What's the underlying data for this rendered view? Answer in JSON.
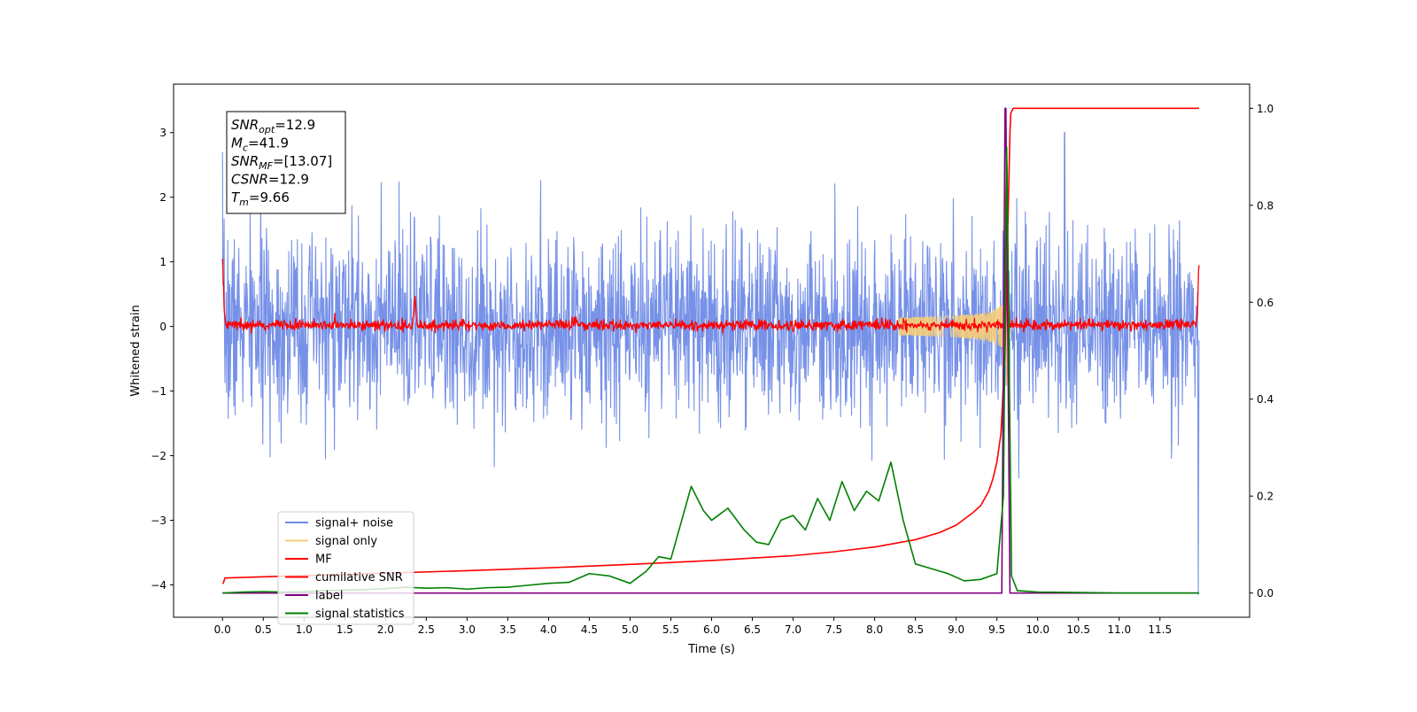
{
  "chart_data": {
    "type": "line",
    "xlabel": "Time (s)",
    "ylabel": "Whitened strain",
    "xlim": [
      -0.6,
      12.6
    ],
    "ylim": [
      -4.5,
      3.75
    ],
    "y2lim": [
      -0.05,
      1.05
    ],
    "x_ticks": [
      0.0,
      0.5,
      1.0,
      1.5,
      2.0,
      2.5,
      3.0,
      3.5,
      4.0,
      4.5,
      5.0,
      5.5,
      6.0,
      6.5,
      7.0,
      7.5,
      8.0,
      8.5,
      9.0,
      9.5,
      10.0,
      10.5,
      11.0,
      11.5
    ],
    "x_tick_labels": [
      "0.0",
      "0.5",
      "1.0",
      "1.5",
      "2.0",
      "2.5",
      "3.0",
      "3.5",
      "4.0",
      "4.5",
      "5.0",
      "5.5",
      "6.0",
      "6.5",
      "7.0",
      "7.5",
      "8.0",
      "8.5",
      "9.0",
      "9.5",
      "10.0",
      "10.5",
      "11.0",
      "11.5"
    ],
    "y_ticks": [
      -4,
      -3,
      -2,
      -1,
      0,
      1,
      2,
      3
    ],
    "y_tick_labels": [
      "−4",
      "−3",
      "−2",
      "−1",
      "0",
      "1",
      "2",
      "3"
    ],
    "y2_ticks": [
      0.0,
      0.2,
      0.4,
      0.6,
      0.8,
      1.0
    ],
    "y2_tick_labels": [
      "0.0",
      "0.2",
      "0.4",
      "0.6",
      "0.8",
      "1.0"
    ],
    "annotations": {
      "box": [
        {
          "main": "SNR",
          "sub": "opt",
          "rest": "=12.9"
        },
        {
          "main": "M",
          "sub": "c",
          "rest": "=41.9"
        },
        {
          "main": "SNR",
          "sub": "MF",
          "rest": "=[13.07]"
        },
        {
          "main": "CSNR",
          "sub": "",
          "rest": "=12.9"
        },
        {
          "main": "T",
          "sub": "m",
          "rest": "=9.66"
        }
      ]
    },
    "legend": {
      "placement": "lower-left",
      "entries": [
        {
          "label": "signal+ noise",
          "color": "#6f8be6"
        },
        {
          "label": "signal only",
          "color": "#f5cd79"
        },
        {
          "label": "MF",
          "color": "#ff0000"
        },
        {
          "label": "cumilative SNR",
          "color": "#ff0000"
        },
        {
          "label": "label",
          "color": "#800080"
        },
        {
          "label": "signal statistics",
          "color": "#008000"
        }
      ]
    },
    "series": [
      {
        "name": "signal+ noise",
        "axis": "left",
        "color": "#6f8be6",
        "kind": "noise",
        "x_range": [
          0.0,
          11.98
        ],
        "approx_max": 2.5,
        "approx_min": -2.2,
        "spikes": [
          [
            0.0,
            2.7
          ],
          [
            10.33,
            3.0
          ],
          [
            11.97,
            -4.15
          ]
        ]
      },
      {
        "name": "signal only",
        "axis": "left",
        "color": "#f5cd79",
        "kind": "chirp",
        "merger_time": 9.62,
        "peak_amplitude": 0.55
      },
      {
        "name": "MF",
        "axis": "left",
        "color": "#ff0000",
        "kind": "noise",
        "x_range": [
          0.0,
          11.98
        ],
        "approx_max": 0.15,
        "approx_min": -0.1,
        "spikes": [
          [
            0.0,
            1.0
          ],
          [
            2.36,
            0.4
          ],
          [
            9.62,
            2.7
          ],
          [
            11.98,
            0.95
          ]
        ]
      },
      {
        "name": "cumilative SNR",
        "axis": "right",
        "color": "#ff0000",
        "x": [
          0.0,
          0.01,
          0.03,
          1.0,
          2.0,
          3.0,
          4.0,
          5.0,
          6.0,
          7.0,
          7.5,
          8.0,
          8.5,
          8.8,
          9.0,
          9.2,
          9.3,
          9.4,
          9.45,
          9.5,
          9.55,
          9.6,
          9.64,
          9.66,
          9.67,
          9.7,
          11.98
        ],
        "y": [
          0.02,
          0.02,
          0.031,
          0.036,
          0.041,
          0.046,
          0.052,
          0.059,
          0.067,
          0.077,
          0.085,
          0.095,
          0.11,
          0.125,
          0.14,
          0.165,
          0.18,
          0.21,
          0.235,
          0.27,
          0.33,
          0.5,
          0.8,
          0.95,
          0.99,
          1.0,
          1.0
        ]
      },
      {
        "name": "label",
        "axis": "right",
        "color": "#800080",
        "x": [
          0.0,
          9.56,
          9.6,
          9.61,
          9.66,
          9.7,
          11.98
        ],
        "y": [
          0.0,
          0.0,
          1.0,
          1.0,
          0.0,
          0.0,
          0.0
        ]
      },
      {
        "name": "signal statistics",
        "axis": "right",
        "color": "#008000",
        "x": [
          0.0,
          0.25,
          0.5,
          0.75,
          1.0,
          1.25,
          1.5,
          1.75,
          2.0,
          2.25,
          2.5,
          2.75,
          3.0,
          3.25,
          3.5,
          3.75,
          4.0,
          4.25,
          4.5,
          4.75,
          5.0,
          5.2,
          5.35,
          5.5,
          5.75,
          5.9,
          6.0,
          6.2,
          6.4,
          6.55,
          6.7,
          6.85,
          7.0,
          7.15,
          7.3,
          7.45,
          7.6,
          7.75,
          7.9,
          8.05,
          8.2,
          8.35,
          8.5,
          8.7,
          8.9,
          9.1,
          9.3,
          9.5,
          9.58,
          9.62,
          9.68,
          9.75,
          10.0,
          10.5,
          11.0,
          11.5,
          11.98
        ],
        "y": [
          0.0,
          0.002,
          0.003,
          0.002,
          0.003,
          0.005,
          0.006,
          0.007,
          0.009,
          0.012,
          0.01,
          0.011,
          0.008,
          0.011,
          0.012,
          0.016,
          0.02,
          0.022,
          0.04,
          0.035,
          0.02,
          0.045,
          0.075,
          0.07,
          0.22,
          0.17,
          0.15,
          0.175,
          0.13,
          0.105,
          0.1,
          0.15,
          0.16,
          0.13,
          0.195,
          0.15,
          0.23,
          0.17,
          0.21,
          0.19,
          0.27,
          0.15,
          0.06,
          0.05,
          0.04,
          0.025,
          0.028,
          0.04,
          0.2,
          0.92,
          0.035,
          0.005,
          0.002,
          0.001,
          0.0,
          0.0,
          0.0
        ]
      }
    ]
  }
}
